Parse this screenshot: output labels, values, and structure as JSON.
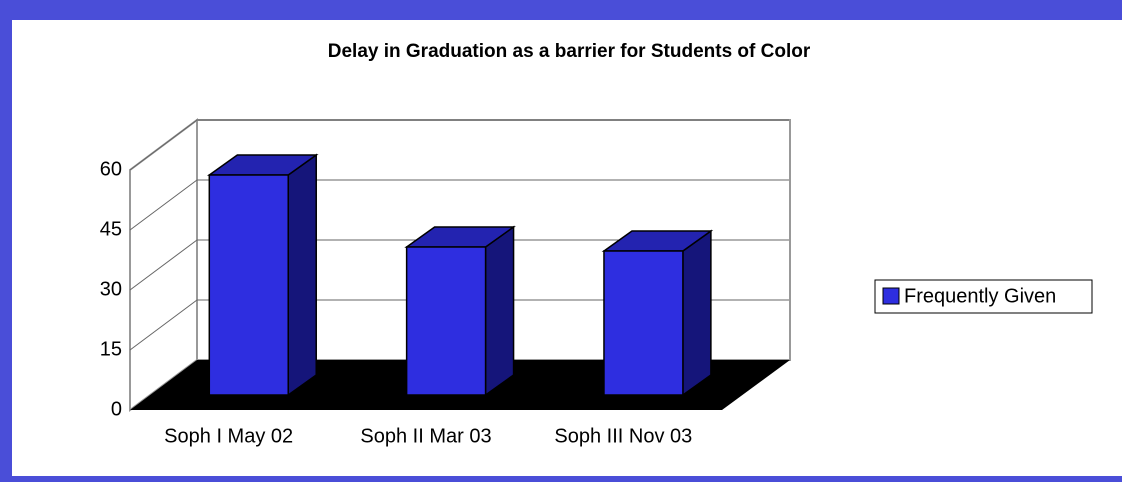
{
  "chart_data": {
    "type": "bar3d",
    "title": "Delay in Graduation as a barrier for Students of Color",
    "categories": [
      "Soph I May 02",
      "Soph II Mar 03",
      "Soph III Nov 03"
    ],
    "series": [
      {
        "name": "Frequently Given",
        "color": "#2e2ee0",
        "values": [
          55,
          37,
          36
        ]
      }
    ],
    "ylim": [
      0,
      60
    ],
    "yticks": [
      0,
      15,
      30,
      45,
      60
    ],
    "grid": true,
    "legend": "right"
  }
}
